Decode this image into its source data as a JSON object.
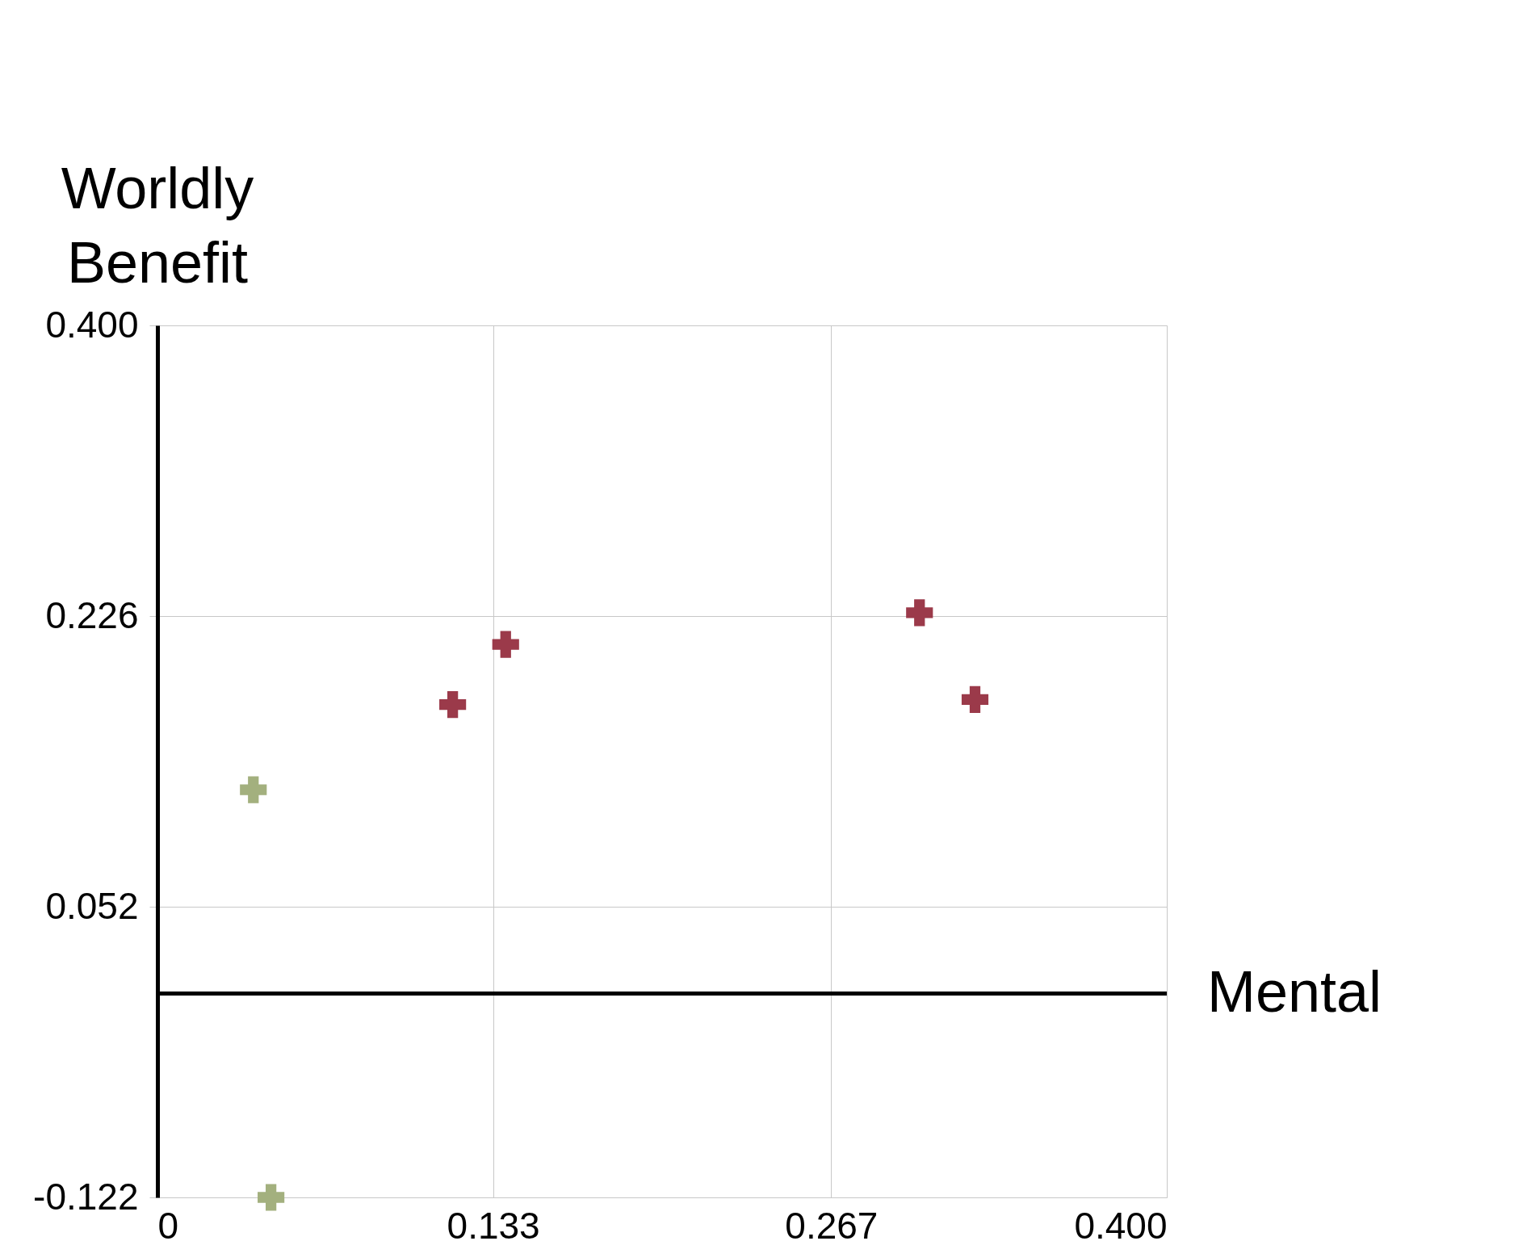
{
  "chart_data": {
    "type": "scatter",
    "xlabel": "Mental",
    "ylabel": "Worldly Benefit",
    "xlim": [
      0,
      0.4
    ],
    "ylim": [
      -0.122,
      0.4
    ],
    "xticks": [
      0,
      {
        "value": 0.133,
        "label": "0.133"
      },
      {
        "value": 0.267,
        "label": "0.267"
      },
      {
        "value": 0.4,
        "label": "0.400"
      }
    ],
    "yticks": [
      {
        "value": -0.122,
        "label": "-0.122"
      },
      {
        "value": 0.052,
        "label": "0.052"
      },
      {
        "value": 0.226,
        "label": "0.226"
      },
      {
        "value": 0.4,
        "label": "0.400"
      }
    ],
    "grid": true,
    "marker": "cross",
    "ref_lines": [
      {
        "axis": "y",
        "value": 0,
        "color": "#000000"
      }
    ],
    "series": [
      {
        "color": "#9b3a4a",
        "x": [
          0.117,
          0.138,
          0.302,
          0.324
        ],
        "values": [
          0.173,
          0.209,
          0.228,
          0.176
        ]
      },
      {
        "color": "#a3b07e",
        "x": [
          0.038,
          0.045
        ],
        "values": [
          0.122,
          -0.122
        ]
      }
    ]
  }
}
